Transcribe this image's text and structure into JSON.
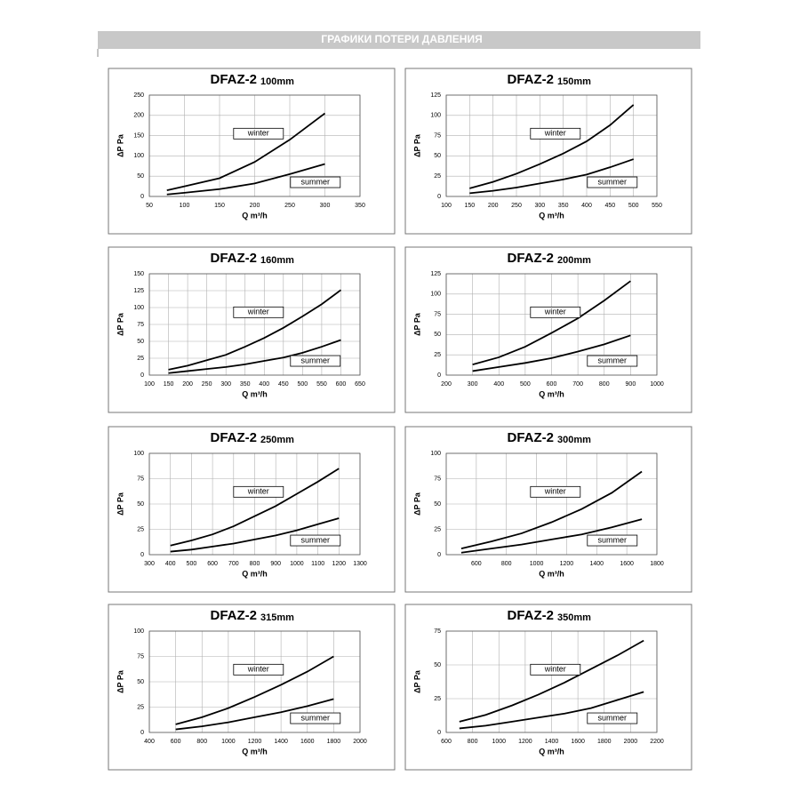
{
  "header": {
    "title": "ГРАФИКИ ПОТЕРИ ДАВЛЕНИЯ"
  },
  "chart_data": [
    {
      "type": "line",
      "title": "DFAZ-2",
      "subtitle": "100mm",
      "x_label": "Q m³/h",
      "y_label": "ΔP Pa",
      "x": [
        75,
        100,
        150,
        200,
        250,
        300
      ],
      "xlim": [
        50,
        350
      ],
      "xticks": [
        50,
        100,
        150,
        200,
        250,
        300,
        350
      ],
      "ylim": [
        0,
        250
      ],
      "yticks": [
        0,
        50,
        100,
        150,
        200,
        250
      ],
      "grid": true,
      "series": [
        {
          "name": "winter",
          "color": "#000000",
          "values": [
            15,
            25,
            45,
            85,
            140,
            205
          ]
        },
        {
          "name": "summer",
          "color": "#000000",
          "values": [
            5,
            9,
            18,
            32,
            55,
            80
          ]
        }
      ]
    },
    {
      "type": "line",
      "title": "DFAZ-2",
      "subtitle": "150mm",
      "x_label": "Q m³/h",
      "y_label": "ΔP Pa",
      "x": [
        150,
        200,
        250,
        300,
        350,
        400,
        450,
        500
      ],
      "xlim": [
        100,
        550
      ],
      "xticks": [
        100,
        150,
        200,
        250,
        300,
        350,
        400,
        450,
        500,
        550
      ],
      "ylim": [
        0,
        125
      ],
      "yticks": [
        0,
        25,
        50,
        75,
        100,
        125
      ],
      "grid": true,
      "series": [
        {
          "name": "winter",
          "color": "#000000",
          "values": [
            10,
            18,
            28,
            40,
            53,
            68,
            88,
            113
          ]
        },
        {
          "name": "summer",
          "color": "#000000",
          "values": [
            4,
            7,
            11,
            16,
            21,
            27,
            36,
            46
          ]
        }
      ]
    },
    {
      "type": "line",
      "title": "DFAZ-2",
      "subtitle": "160mm",
      "x_label": "Q m³/h",
      "y_label": "ΔP Pa",
      "x": [
        150,
        200,
        250,
        300,
        350,
        400,
        450,
        500,
        550,
        600
      ],
      "xlim": [
        100,
        650
      ],
      "xticks": [
        100,
        150,
        200,
        250,
        300,
        350,
        400,
        450,
        500,
        550,
        600,
        650
      ],
      "ylim": [
        0,
        150
      ],
      "yticks": [
        0,
        25,
        50,
        75,
        100,
        125,
        150
      ],
      "grid": true,
      "series": [
        {
          "name": "winter",
          "color": "#000000",
          "values": [
            8,
            14,
            22,
            30,
            42,
            55,
            70,
            87,
            105,
            126
          ]
        },
        {
          "name": "summer",
          "color": "#000000",
          "values": [
            3,
            6,
            9,
            12,
            16,
            21,
            26,
            33,
            42,
            52
          ]
        }
      ]
    },
    {
      "type": "line",
      "title": "DFAZ-2",
      "subtitle": "200mm",
      "x_label": "Q m³/h",
      "y_label": "ΔP Pa",
      "x": [
        300,
        400,
        500,
        600,
        700,
        800,
        900
      ],
      "xlim": [
        200,
        1000
      ],
      "xticks": [
        200,
        300,
        400,
        500,
        600,
        700,
        800,
        900,
        1000
      ],
      "ylim": [
        0,
        125
      ],
      "yticks": [
        0,
        25,
        50,
        75,
        100,
        125
      ],
      "grid": true,
      "series": [
        {
          "name": "winter",
          "color": "#000000",
          "values": [
            13,
            22,
            35,
            52,
            70,
            92,
            116
          ]
        },
        {
          "name": "summer",
          "color": "#000000",
          "values": [
            5,
            10,
            15,
            21,
            29,
            38,
            49
          ]
        }
      ]
    },
    {
      "type": "line",
      "title": "DFAZ-2",
      "subtitle": "250mm",
      "x_label": "Q m³/h",
      "y_label": "ΔP Pa",
      "x": [
        400,
        500,
        600,
        700,
        800,
        900,
        1000,
        1100,
        1200
      ],
      "xlim": [
        300,
        1300
      ],
      "xticks": [
        300,
        400,
        500,
        600,
        700,
        800,
        900,
        1000,
        1100,
        1200,
        1300
      ],
      "ylim": [
        0,
        100
      ],
      "yticks": [
        0,
        25,
        50,
        75,
        100
      ],
      "grid": true,
      "series": [
        {
          "name": "winter",
          "color": "#000000",
          "values": [
            9,
            14,
            20,
            28,
            38,
            48,
            60,
            72,
            85
          ]
        },
        {
          "name": "summer",
          "color": "#000000",
          "values": [
            3,
            5,
            8,
            11,
            15,
            19,
            24,
            30,
            36
          ]
        }
      ]
    },
    {
      "type": "line",
      "title": "DFAZ-2",
      "subtitle": "300mm",
      "x_label": "Q m³/h",
      "y_label": "ΔP Pa",
      "x": [
        500,
        700,
        900,
        1100,
        1300,
        1500,
        1700
      ],
      "xlim": [
        400,
        1800
      ],
      "xticks": [
        600,
        800,
        1000,
        1200,
        1400,
        1600,
        1800
      ],
      "ylim": [
        0,
        100
      ],
      "yticks": [
        0,
        25,
        50,
        75,
        100
      ],
      "grid": true,
      "series": [
        {
          "name": "winter",
          "color": "#000000",
          "values": [
            6,
            13,
            21,
            32,
            45,
            61,
            82
          ]
        },
        {
          "name": "summer",
          "color": "#000000",
          "values": [
            2,
            6,
            10,
            15,
            20,
            27,
            35
          ]
        }
      ]
    },
    {
      "type": "line",
      "title": "DFAZ-2",
      "subtitle": "315mm",
      "x_label": "Q m³/h",
      "y_label": "ΔP Pa",
      "x": [
        600,
        800,
        1000,
        1200,
        1400,
        1600,
        1800
      ],
      "xlim": [
        400,
        2000
      ],
      "xticks": [
        400,
        600,
        800,
        1000,
        1200,
        1400,
        1600,
        1800,
        2000
      ],
      "ylim": [
        0,
        100
      ],
      "yticks": [
        0,
        25,
        50,
        75,
        100
      ],
      "grid": true,
      "series": [
        {
          "name": "winter",
          "color": "#000000",
          "values": [
            8,
            15,
            24,
            35,
            47,
            60,
            75
          ]
        },
        {
          "name": "summer",
          "color": "#000000",
          "values": [
            3,
            6,
            10,
            15,
            20,
            26,
            33
          ]
        }
      ]
    },
    {
      "type": "line",
      "title": "DFAZ-2",
      "subtitle": "350mm",
      "x_label": "Q m³/h",
      "y_label": "ΔP Pa",
      "x": [
        700,
        900,
        1100,
        1300,
        1500,
        1700,
        1900,
        2100
      ],
      "xlim": [
        600,
        2200
      ],
      "xticks": [
        600,
        800,
        1000,
        1200,
        1400,
        1600,
        1800,
        2000,
        2200
      ],
      "ylim": [
        0,
        75
      ],
      "yticks": [
        0,
        25,
        50,
        75
      ],
      "grid": true,
      "series": [
        {
          "name": "winter",
          "color": "#000000",
          "values": [
            8,
            13,
            20,
            28,
            37,
            47,
            57,
            68
          ]
        },
        {
          "name": "summer",
          "color": "#000000",
          "values": [
            3,
            5,
            8,
            11,
            14,
            18,
            24,
            30
          ]
        }
      ]
    }
  ]
}
